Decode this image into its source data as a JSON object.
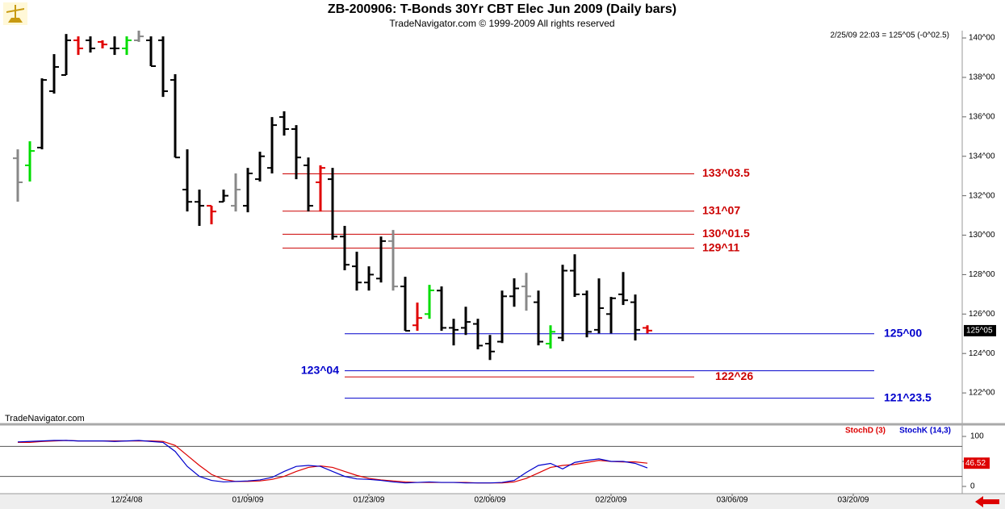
{
  "chart_data": [
    {
      "type": "ohlc",
      "title": "ZB-200906:  T-Bonds 30Yr CBT Elec Jun 2009  (Daily bars)",
      "subtitle": "TradeNavigator.com © 1999-2009 All rights reserved",
      "annotations": [
        "2/25/09 22:03 = 125^05 (-0^02.5)",
        "TradeNavigator.com"
      ],
      "categories": [
        null,
        null,
        null,
        null,
        null,
        null,
        null,
        null,
        null,
        "12/24/08",
        null,
        null,
        null,
        null,
        null,
        null,
        null,
        null,
        null,
        "01/09/09",
        null,
        null,
        null,
        null,
        null,
        null,
        null,
        null,
        null,
        "01/23/09",
        null,
        null,
        null,
        null,
        null,
        null,
        null,
        null,
        null,
        "02/06/09",
        null,
        null,
        null,
        null,
        null,
        null,
        null,
        null,
        null,
        "02/20/09",
        null,
        null,
        null,
        null,
        null,
        null,
        null,
        null,
        null,
        "03/06/09",
        null,
        null,
        null,
        null,
        null,
        null,
        null,
        null,
        null,
        "03/20/09",
        null,
        null,
        null,
        null,
        null,
        null,
        null,
        null,
        null
      ],
      "open": [
        133.9,
        133.54,
        134.44,
        137.3,
        138.12,
        139.88,
        139.88,
        139.8,
        139.47,
        139.47,
        139.88,
        139.88,
        139.88,
        137.87,
        132.31,
        131.69,
        131.49,
        131.69,
        131.49,
        131.49,
        132.84,
        133.41,
        135.99,
        135.38,
        133.54,
        132.68,
        132.84,
        129.93,
        128.42,
        127.6,
        127.8,
        129.7,
        127.4,
        125.43,
        126.0,
        127.19,
        125.3,
        125.3,
        125.5,
        124.5,
        124.6,
        126.9,
        127.4,
        126.6,
        124.5,
        124.8,
        128.2,
        127.0,
        125.2,
        126.0,
        127.0,
        126.6,
        125.3,
        null,
        null,
        null,
        null,
        null,
        null,
        null,
        null,
        null,
        null,
        null,
        null,
        null,
        null,
        null,
        null,
        null,
        null,
        null,
        null,
        null,
        null,
        null,
        null,
        null,
        null
      ],
      "high": [
        134.35,
        134.76,
        137.95,
        139.18,
        140.2,
        140.08,
        140.08,
        139.88,
        140.08,
        140.08,
        140.37,
        140.08,
        140.08,
        138.16,
        134.35,
        132.31,
        131.49,
        132.31,
        133.13,
        133.41,
        134.23,
        135.99,
        136.28,
        135.58,
        133.94,
        133.54,
        133.41,
        130.47,
        129.16,
        128.42,
        129.93,
        130.26,
        127.89,
        126.58,
        127.48,
        127.4,
        125.76,
        126.37,
        125.76,
        124.94,
        127.19,
        127.81,
        128.09,
        127.19,
        125.43,
        128.5,
        129.03,
        127.19,
        127.81,
        126.87,
        128.13,
        126.99,
        125.43,
        null,
        null,
        null,
        null,
        null,
        null,
        null,
        null,
        null,
        null,
        null,
        null,
        null,
        null,
        null,
        null,
        null,
        null,
        null,
        null,
        null,
        null,
        null,
        null,
        null,
        null
      ],
      "low": [
        131.7,
        132.72,
        134.35,
        137.18,
        138.12,
        139.14,
        139.26,
        139.47,
        139.14,
        139.14,
        139.8,
        138.57,
        137.01,
        133.94,
        131.2,
        130.47,
        130.55,
        131.69,
        131.2,
        131.16,
        132.72,
        133.13,
        135.05,
        132.84,
        131.2,
        131.2,
        129.77,
        128.22,
        127.19,
        127.19,
        127.6,
        127.19,
        125.15,
        125.15,
        125.76,
        125.15,
        124.41,
        124.94,
        124.21,
        123.67,
        124.53,
        126.37,
        126.17,
        124.41,
        124.25,
        124.62,
        126.87,
        124.82,
        125.02,
        125.02,
        126.46,
        124.66,
        125.02,
        null,
        null,
        null,
        null,
        null,
        null,
        null,
        null,
        null,
        null,
        null,
        null,
        null,
        null,
        null,
        null,
        null,
        null,
        null,
        null,
        null,
        null,
        null,
        null,
        null,
        null
      ],
      "close": [
        132.68,
        134.27,
        137.87,
        138.53,
        139.88,
        139.47,
        139.47,
        139.67,
        139.47,
        139.88,
        140.08,
        138.57,
        137.3,
        133.94,
        131.69,
        131.49,
        131.2,
        132.0,
        132.31,
        133.13,
        134.0,
        135.58,
        135.38,
        133.94,
        131.49,
        133.41,
        129.93,
        128.5,
        127.6,
        128.0,
        129.7,
        127.4,
        125.15,
        125.8,
        127.2,
        125.3,
        125.2,
        125.6,
        124.4,
        124.1,
        126.9,
        127.3,
        126.9,
        124.6,
        125.1,
        128.2,
        127.0,
        125.1,
        126.3,
        126.8,
        126.7,
        125.2,
        125.16,
        null,
        null,
        null,
        null,
        null,
        null,
        null,
        null,
        null,
        null,
        null,
        null,
        null,
        null,
        null,
        null,
        null,
        null,
        null,
        null,
        null,
        null,
        null,
        null,
        null,
        null
      ],
      "colors": [
        "#888888",
        "#00dd00",
        "#000000",
        "#000000",
        "#000000",
        "#e00000",
        "#000000",
        "#e00000",
        "#000000",
        "#00dd00",
        "#888888",
        "#000000",
        "#000000",
        "#000000",
        "#000000",
        "#000000",
        "#e00000",
        "#000000",
        "#888888",
        "#000000",
        "#000000",
        "#000000",
        "#000000",
        "#000000",
        "#000000",
        "#e00000",
        "#000000",
        "#000000",
        "#000000",
        "#000000",
        "#000000",
        "#888888",
        "#000000",
        "#e00000",
        "#00dd00",
        "#000000",
        "#000000",
        "#000000",
        "#000000",
        "#000000",
        "#000000",
        "#000000",
        "#888888",
        "#000000",
        "#00dd00",
        "#000000",
        "#000000",
        "#000000",
        "#000000",
        "#000000",
        "#000000",
        "#000000",
        "#e00000",
        null,
        null,
        null,
        null,
        null,
        null,
        null,
        null,
        null,
        null,
        null,
        null,
        null,
        null,
        null,
        null,
        null,
        null,
        null,
        null,
        null,
        null,
        null,
        null,
        null,
        null
      ],
      "last_price": {
        "value": 125.15625,
        "label": "125^05"
      },
      "levels": [
        {
          "value": 133.109375,
          "label": "133^03.5",
          "color": "#cc0000"
        },
        {
          "value": 131.21875,
          "label": "131^07",
          "color": "#cc0000"
        },
        {
          "value": 130.046875,
          "label": "130^01.5",
          "color": "#cc0000"
        },
        {
          "value": 129.34375,
          "label": "129^11",
          "color": "#cc0000"
        },
        {
          "value": 125.0,
          "label": "125^00",
          "color": "#0000cc"
        },
        {
          "value": 123.125,
          "label": "123^04",
          "color": "#0000cc"
        },
        {
          "value": 122.8125,
          "label": "122^26",
          "color": "#cc0000"
        },
        {
          "value": 121.734375,
          "label": "121^23.5",
          "color": "#0000cc"
        }
      ],
      "ylim": [
        120.45,
        140.37
      ],
      "yticks": [
        {
          "value": 122,
          "label": "122^00"
        },
        {
          "value": 124,
          "label": "124^00"
        },
        {
          "value": 126,
          "label": "126^00"
        },
        {
          "value": 128,
          "label": "128^00"
        },
        {
          "value": 130,
          "label": "130^00"
        },
        {
          "value": 132,
          "label": "132^00"
        },
        {
          "value": 134,
          "label": "134^00"
        },
        {
          "value": 136,
          "label": "136^00"
        },
        {
          "value": 138,
          "label": "138^00"
        },
        {
          "value": 140,
          "label": "140^00"
        }
      ]
    },
    {
      "type": "line",
      "series": [
        {
          "name": "StochD (3)",
          "color": "#dd0000",
          "values": [
            88,
            88,
            90,
            91,
            92,
            91,
            91,
            91,
            91,
            91,
            91,
            91,
            90,
            82,
            62,
            42,
            24,
            14,
            10,
            10,
            11,
            14,
            20,
            30,
            38,
            41,
            38,
            30,
            22,
            16,
            13,
            11,
            9,
            8,
            8,
            8,
            8,
            8,
            7,
            7,
            7,
            9,
            16,
            27,
            38,
            42,
            44,
            48,
            52,
            50,
            49,
            49,
            46.52,
            null,
            null,
            null,
            null,
            null,
            null,
            null,
            null,
            null,
            null,
            null,
            null,
            null,
            null,
            null,
            null,
            null,
            null,
            null,
            null,
            null,
            null,
            null,
            null,
            null,
            null
          ]
        },
        {
          "name": "StochK (14,3)",
          "color": "#0000cc",
          "values": [
            89,
            90,
            91,
            92,
            92,
            91,
            91,
            91,
            90,
            91,
            92,
            90,
            88,
            70,
            40,
            20,
            12,
            9,
            10,
            11,
            13,
            18,
            30,
            40,
            42,
            40,
            30,
            20,
            15,
            14,
            12,
            9,
            7,
            8,
            9,
            8,
            8,
            7,
            7,
            7,
            8,
            12,
            28,
            42,
            46,
            35,
            48,
            52,
            55,
            50,
            50,
            46,
            37,
            null,
            null,
            null,
            null,
            null,
            null,
            null,
            null,
            null,
            null,
            null,
            null,
            null,
            null,
            null,
            null,
            null,
            null,
            null,
            null,
            null,
            null,
            null,
            null,
            null,
            null
          ]
        }
      ],
      "reference_lines": [
        80,
        20
      ],
      "ylim": [
        -14.5,
        121
      ],
      "yticks": [
        0,
        50,
        100
      ]
    }
  ]
}
